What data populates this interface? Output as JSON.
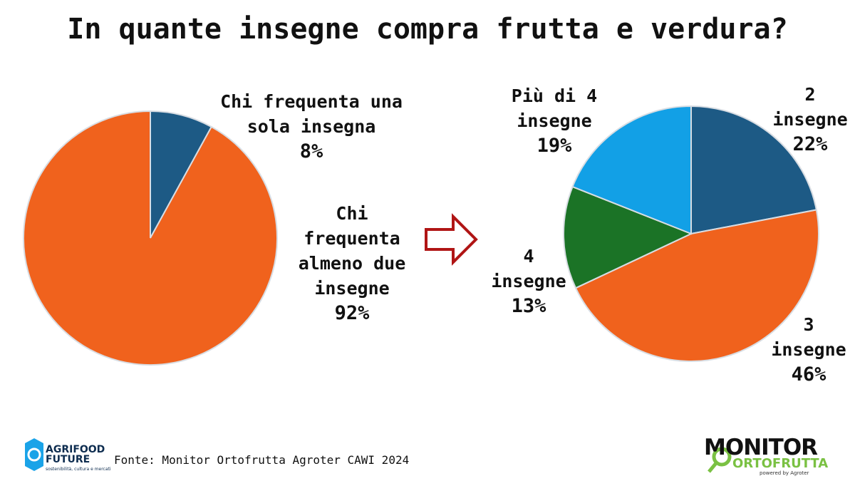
{
  "title": "In quante insegne compra frutta e verdura?",
  "chart_data": [
    {
      "type": "pie",
      "categories": [
        "Chi frequenta una sola insegna",
        "Chi frequenta almeno due insegne"
      ],
      "values": [
        8,
        92
      ],
      "value_labels": [
        "8%",
        "92%"
      ],
      "colors": [
        "#1d5a85",
        "#f0621d"
      ]
    },
    {
      "type": "pie",
      "categories": [
        "2 insegne",
        "3 insegne",
        "4 insegne",
        "Più di 4 insegne"
      ],
      "values": [
        22,
        46,
        13,
        19
      ],
      "value_labels": [
        "22%",
        "46%",
        "13%",
        "19%"
      ],
      "colors": [
        "#1d5a85",
        "#f0621d",
        "#1b7326",
        "#12a0e6"
      ]
    }
  ],
  "footer": {
    "source": "Fonte: Monitor Ortofrutta Agroter CAWI 2024",
    "left_logo": {
      "name": "AGRIFOOD FUTURE",
      "tagline": "sostenibilità, cultura e mercati"
    },
    "right_logo": {
      "line1": "MONITOR",
      "line2": "ORTOFRUTTA",
      "tagline": "powered by Agroter"
    }
  }
}
